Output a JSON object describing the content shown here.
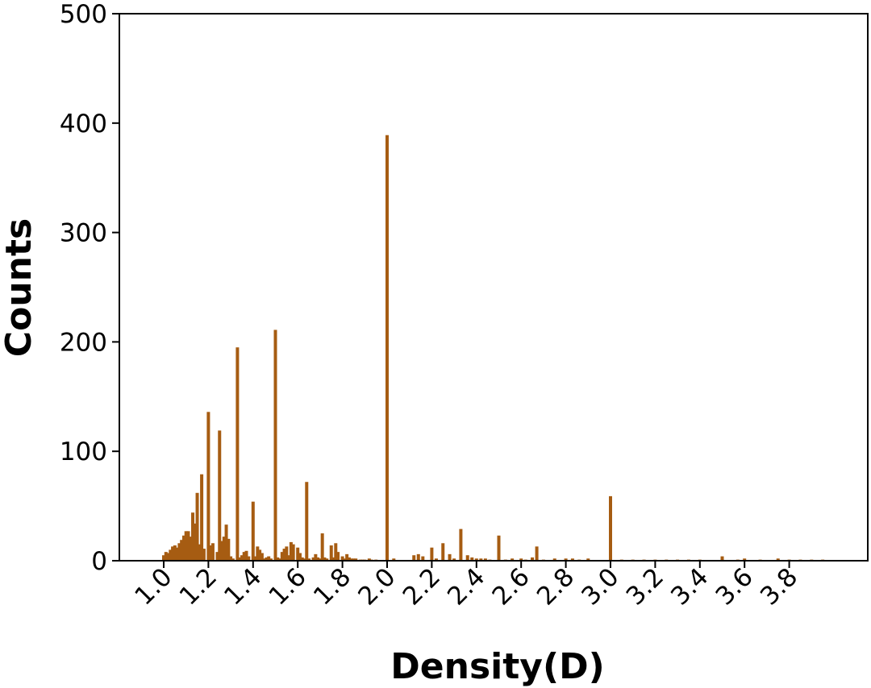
{
  "chart_data": {
    "type": "bar",
    "title": "",
    "xlabel": "Density(D)",
    "ylabel": "Counts",
    "xlim": [
      0.8,
      4.0
    ],
    "ylim": [
      0,
      500
    ],
    "x_ticks": [
      1.0,
      1.2,
      1.4,
      1.6,
      1.8,
      2.0,
      2.2,
      2.4,
      2.6,
      2.8,
      3.0,
      3.2,
      3.4,
      3.6,
      3.8
    ],
    "x_tick_labels": [
      "1.0",
      "1.2",
      "1.4",
      "1.6",
      "1.8",
      "2.0",
      "2.2",
      "2.4",
      "2.6",
      "2.8",
      "3.0",
      "3.2",
      "3.4",
      "3.6",
      "3.8"
    ],
    "y_ticks": [
      0,
      100,
      200,
      300,
      400,
      500
    ],
    "y_tick_labels": [
      "0",
      "100",
      "200",
      "300",
      "400",
      "500"
    ],
    "bar_color": "#a65c12",
    "bar_width": 0.02,
    "grid": false,
    "legend": "none",
    "x": [
      1.0,
      1.01,
      1.02,
      1.03,
      1.04,
      1.05,
      1.06,
      1.07,
      1.08,
      1.09,
      1.1,
      1.11,
      1.12,
      1.13,
      1.14,
      1.15,
      1.16,
      1.17,
      1.18,
      1.2,
      1.21,
      1.22,
      1.24,
      1.25,
      1.26,
      1.27,
      1.28,
      1.29,
      1.3,
      1.31,
      1.33,
      1.34,
      1.35,
      1.36,
      1.37,
      1.38,
      1.4,
      1.41,
      1.42,
      1.43,
      1.44,
      1.45,
      1.46,
      1.47,
      1.48,
      1.5,
      1.51,
      1.52,
      1.53,
      1.54,
      1.55,
      1.56,
      1.57,
      1.58,
      1.6,
      1.61,
      1.62,
      1.63,
      1.64,
      1.65,
      1.67,
      1.68,
      1.69,
      1.7,
      1.71,
      1.72,
      1.73,
      1.75,
      1.76,
      1.77,
      1.78,
      1.8,
      1.81,
      1.82,
      1.83,
      1.84,
      1.85,
      1.86,
      1.88,
      1.89,
      1.9,
      1.92,
      1.93,
      1.95,
      2.0,
      2.03,
      2.12,
      2.14,
      2.16,
      2.2,
      2.22,
      2.25,
      2.28,
      2.3,
      2.33,
      2.36,
      2.38,
      2.4,
      2.42,
      2.44,
      2.46,
      2.5,
      2.53,
      2.56,
      2.6,
      2.62,
      2.65,
      2.67,
      2.7,
      2.75,
      2.8,
      2.83,
      2.86,
      2.9,
      3.0,
      3.05,
      3.1,
      3.15,
      3.2,
      3.25,
      3.3,
      3.35,
      3.4,
      3.5,
      3.57,
      3.6,
      3.67,
      3.75,
      3.8,
      3.85,
      3.9,
      3.95
    ],
    "values": [
      5,
      8,
      7,
      10,
      13,
      14,
      12,
      16,
      19,
      23,
      27,
      27,
      22,
      44,
      34,
      62,
      15,
      79,
      11,
      136,
      14,
      16,
      8,
      119,
      18,
      22,
      33,
      20,
      4,
      2,
      195,
      3,
      5,
      8,
      9,
      4,
      54,
      4,
      13,
      10,
      7,
      2,
      3,
      4,
      2,
      211,
      3,
      2,
      8,
      11,
      13,
      5,
      17,
      15,
      12,
      7,
      3,
      2,
      72,
      2,
      3,
      6,
      3,
      2,
      25,
      3,
      2,
      14,
      3,
      16,
      8,
      4,
      2,
      6,
      3,
      2,
      2,
      2,
      1,
      1,
      1,
      2,
      1,
      1,
      389,
      2,
      5,
      6,
      4,
      12,
      2,
      16,
      6,
      2,
      29,
      5,
      3,
      2,
      2,
      2,
      1,
      23,
      1,
      2,
      2,
      1,
      3,
      13,
      1,
      2,
      2,
      2,
      1,
      2,
      59,
      1,
      1,
      1,
      1,
      1,
      1,
      1,
      1,
      4,
      1,
      2,
      1,
      2,
      1,
      1,
      1,
      1
    ]
  }
}
